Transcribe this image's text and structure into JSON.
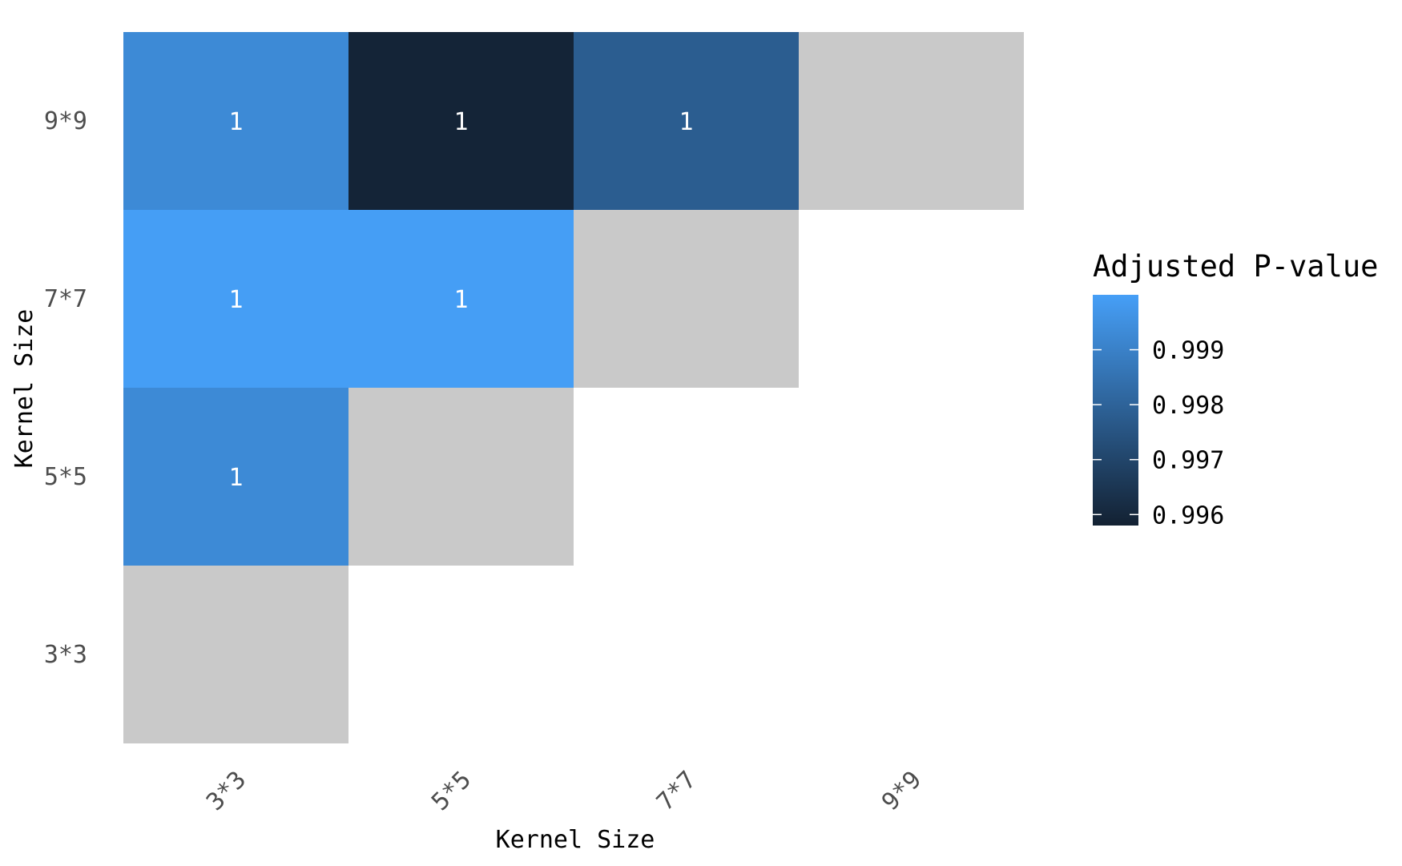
{
  "chart_data": {
    "type": "heatmap",
    "title": "",
    "xlabel": "Kernel Size",
    "ylabel": "Kernel Size",
    "x_categories": [
      "3*3",
      "5*5",
      "7*7",
      "9*9"
    ],
    "y_categories": [
      "3*3",
      "5*5",
      "7*7",
      "9*9"
    ],
    "cells": [
      {
        "x": "3*3",
        "y": "9*9",
        "value": 0.9993,
        "label": "1"
      },
      {
        "x": "5*5",
        "y": "9*9",
        "value": 0.9959,
        "label": "1"
      },
      {
        "x": "7*7",
        "y": "9*9",
        "value": 0.9978,
        "label": "1"
      },
      {
        "x": "9*9",
        "y": "9*9",
        "value": null,
        "label": ""
      },
      {
        "x": "3*3",
        "y": "7*7",
        "value": 0.99995,
        "label": "1"
      },
      {
        "x": "5*5",
        "y": "7*7",
        "value": 0.99995,
        "label": "1"
      },
      {
        "x": "7*7",
        "y": "7*7",
        "value": null,
        "label": ""
      },
      {
        "x": "3*3",
        "y": "5*5",
        "value": 0.9993,
        "label": "1"
      },
      {
        "x": "5*5",
        "y": "5*5",
        "value": null,
        "label": ""
      },
      {
        "x": "3*3",
        "y": "3*3",
        "value": null,
        "label": ""
      }
    ],
    "legend": {
      "title": "Adjusted P-value",
      "position": "right",
      "ticks": [
        0.999,
        0.998,
        0.997,
        0.996
      ],
      "tick_labels": [
        "0.999",
        "0.998",
        "0.997",
        "0.996"
      ],
      "range": [
        0.9958,
        1.0
      ]
    },
    "colors": {
      "low": "#132132",
      "high": "#469FF7",
      "na": "#C9C9C9"
    },
    "grid": false
  }
}
